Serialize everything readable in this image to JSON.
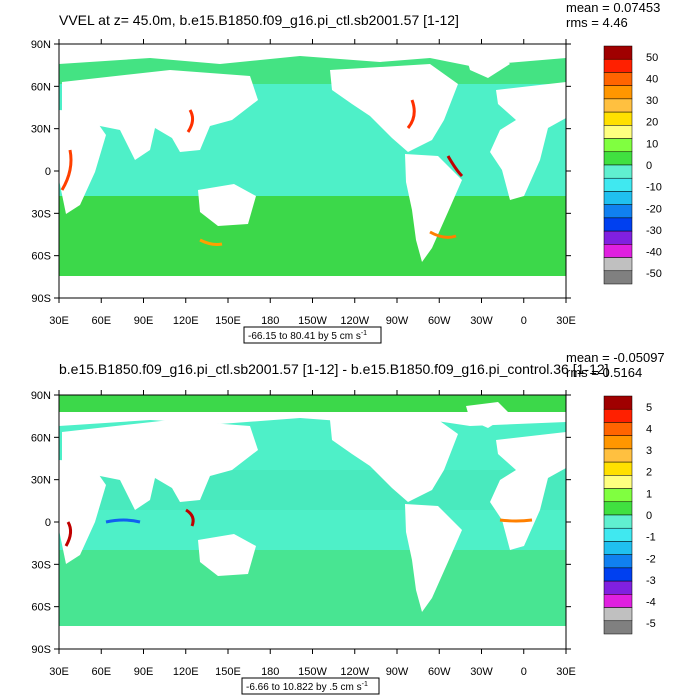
{
  "colors": {
    "ocean_base": "#4ef0c8",
    "ocean_light": "#46e6b8",
    "south_band": "#3cd84a",
    "north_band": "#3cd84a",
    "land": "#ffffff",
    "frame": "#000000"
  },
  "top_panel": {
    "title": "VVEL at z=  45.0m, b.e15.B1850.f09_g16.pi_ctl.sb2001.57 [1-12]",
    "mean_label": "mean = 0.07453",
    "rms_label": "rms = 4.46",
    "range_label": "-66.15 to 80.41 by 5 cm s",
    "range_superscript": "-1",
    "colorbar_labels": [
      "50",
      "40",
      "30",
      "20",
      "10",
      "0",
      "-10",
      "-20",
      "-30",
      "-40",
      "-50"
    ],
    "colorbar_colors": [
      "#a00000",
      "#ff2000",
      "#ff6400",
      "#ff9600",
      "#ffc040",
      "#ffe000",
      "#ffff80",
      "#80ff40",
      "#40e040",
      "#60f0d0",
      "#40e8f0",
      "#20c0f0",
      "#1080f0",
      "#0040f0",
      "#8020e0",
      "#e020e0",
      "#c0c0c0",
      "#808080"
    ]
  },
  "bottom_panel": {
    "title": "b.e15.B1850.f09_g16.pi_ctl.sb2001.57 [1-12] - b.e15.B1850.f09_g16.pi_control.36 [1-12]",
    "mean_label": "mean = -0.05097",
    "rms_label": "rms = 0.5164",
    "range_label": "-6.66 to 10.822 by .5 cm s",
    "range_superscript": "-1",
    "colorbar_labels": [
      "5",
      "4",
      "3",
      "2",
      "1",
      "0",
      "-1",
      "-2",
      "-3",
      "-4",
      "-5"
    ],
    "colorbar_colors": [
      "#a00000",
      "#ff2000",
      "#ff6400",
      "#ff9600",
      "#ffc040",
      "#ffe000",
      "#ffff80",
      "#80ff40",
      "#40e040",
      "#60f0d0",
      "#40e8f0",
      "#20c0f0",
      "#1080f0",
      "#0040f0",
      "#8020e0",
      "#e020e0",
      "#c0c0c0",
      "#808080"
    ]
  },
  "lat_labels": [
    "90N",
    "60N",
    "30N",
    "0",
    "30S",
    "60S",
    "90S"
  ],
  "lon_labels": [
    "30E",
    "60E",
    "90E",
    "120E",
    "150E",
    "180",
    "150W",
    "120W",
    "90W",
    "60W",
    "30W",
    "0",
    "30E"
  ]
}
